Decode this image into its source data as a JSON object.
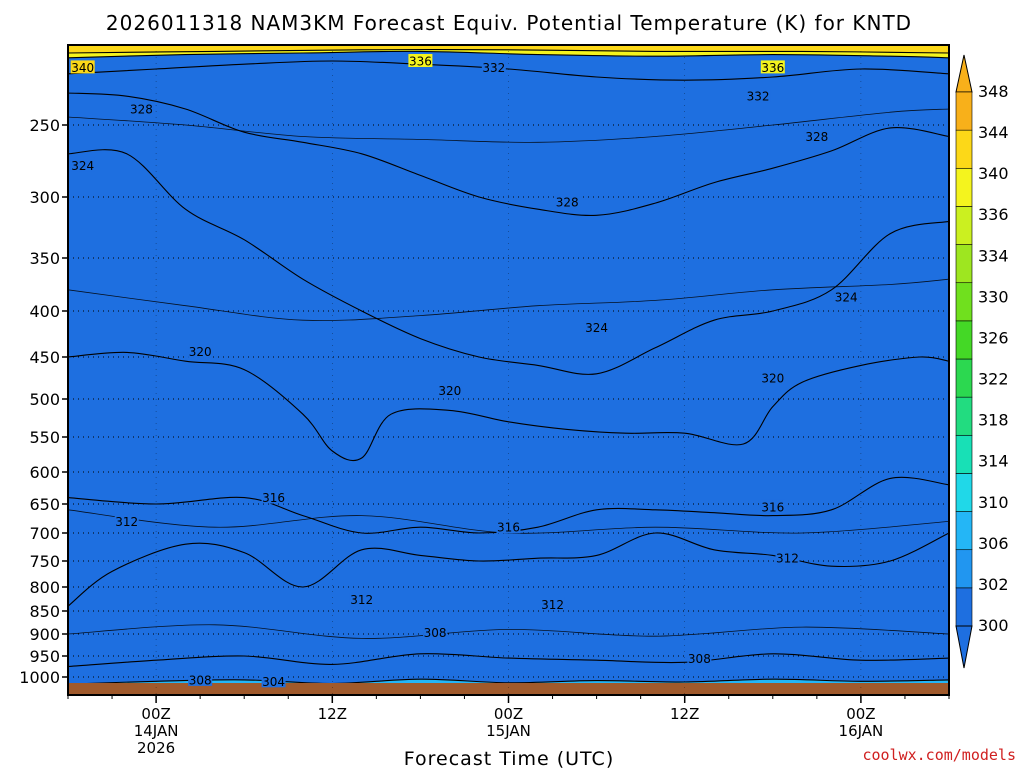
{
  "chart_data": {
    "type": "heatmap",
    "title": "2026011318 NAM3KM Forecast Equiv. Potential Temperature (K) for KNTD",
    "xlabel": "Forecast Time (UTC)",
    "ylabel": "",
    "x_ticks": [
      {
        "hour": 6,
        "lines": [
          "00Z",
          "14JAN",
          "2026"
        ]
      },
      {
        "hour": 18,
        "lines": [
          "12Z"
        ]
      },
      {
        "hour": 30,
        "lines": [
          "00Z",
          "15JAN"
        ]
      },
      {
        "hour": 42,
        "lines": [
          "12Z"
        ]
      },
      {
        "hour": 54,
        "lines": [
          "00Z",
          "16JAN"
        ]
      }
    ],
    "xlim_hours": [
      0,
      60
    ],
    "y_ticks": [
      "250",
      "300",
      "350",
      "400",
      "450",
      "500",
      "550",
      "600",
      "650",
      "700",
      "750",
      "800",
      "850",
      "900",
      "950",
      "1000"
    ],
    "y_tick_values": [
      250,
      300,
      350,
      400,
      450,
      500,
      550,
      600,
      650,
      700,
      750,
      800,
      850,
      900,
      950,
      1000
    ],
    "ylim_hpa": [
      200,
      1025
    ],
    "colorbar_levels": [
      "300",
      "302",
      "306",
      "310",
      "314",
      "318",
      "322",
      "326",
      "330",
      "334",
      "336",
      "340",
      "344",
      "348"
    ],
    "colorbar_values": [
      300,
      302,
      306,
      310,
      314,
      318,
      322,
      326,
      330,
      334,
      336,
      340,
      344,
      348
    ],
    "colors": [
      "#1e6fe0",
      "#2196f0",
      "#24b6f6",
      "#20d8e8",
      "#18e0b6",
      "#22dc80",
      "#2cd850",
      "#44d826",
      "#70e01e",
      "#9ee620",
      "#cbf020",
      "#f4f41e",
      "#fcd818",
      "#f8b01a"
    ],
    "contours": [
      {
        "level": 304,
        "points": [
          [
            0,
            1010
          ],
          [
            6,
            1006
          ],
          [
            12,
            1004
          ],
          [
            18,
            1009
          ],
          [
            24,
            1003
          ],
          [
            30,
            1008
          ],
          [
            36,
            1005
          ],
          [
            42,
            1007
          ],
          [
            48,
            1003
          ],
          [
            54,
            1006
          ],
          [
            60,
            1004
          ]
        ]
      },
      {
        "level": 308,
        "points": [
          [
            0,
            975
          ],
          [
            6,
            960
          ],
          [
            12,
            950
          ],
          [
            18,
            970
          ],
          [
            24,
            945
          ],
          [
            30,
            955
          ],
          [
            36,
            960
          ],
          [
            42,
            965
          ],
          [
            48,
            945
          ],
          [
            54,
            960
          ],
          [
            60,
            955
          ]
        ]
      },
      {
        "level": 312,
        "points": [
          [
            0,
            840
          ],
          [
            3,
            770
          ],
          [
            8,
            720
          ],
          [
            12,
            735
          ],
          [
            16,
            800
          ],
          [
            20,
            730
          ],
          [
            24,
            740
          ],
          [
            28,
            750
          ],
          [
            32,
            745
          ],
          [
            36,
            740
          ],
          [
            40,
            700
          ],
          [
            44,
            730
          ],
          [
            48,
            740
          ],
          [
            52,
            760
          ],
          [
            56,
            750
          ],
          [
            60,
            700
          ]
        ]
      },
      {
        "level": 316,
        "points": [
          [
            0,
            640
          ],
          [
            6,
            650
          ],
          [
            12,
            640
          ],
          [
            16,
            670
          ],
          [
            20,
            700
          ],
          [
            24,
            690
          ],
          [
            28,
            700
          ],
          [
            32,
            690
          ],
          [
            36,
            660
          ],
          [
            40,
            660
          ],
          [
            44,
            665
          ],
          [
            48,
            670
          ],
          [
            52,
            660
          ],
          [
            56,
            610
          ],
          [
            60,
            620
          ]
        ]
      },
      {
        "level": 320,
        "points": [
          [
            0,
            450
          ],
          [
            4,
            445
          ],
          [
            8,
            455
          ],
          [
            12,
            465
          ],
          [
            16,
            520
          ],
          [
            18,
            570
          ],
          [
            20,
            580
          ],
          [
            22,
            520
          ],
          [
            26,
            515
          ],
          [
            30,
            530
          ],
          [
            34,
            540
          ],
          [
            38,
            545
          ],
          [
            42,
            545
          ],
          [
            46,
            560
          ],
          [
            48,
            510
          ],
          [
            50,
            480
          ],
          [
            54,
            460
          ],
          [
            58,
            450
          ],
          [
            60,
            455
          ]
        ]
      },
      {
        "level": 324,
        "points": [
          [
            0,
            270
          ],
          [
            4,
            270
          ],
          [
            8,
            310
          ],
          [
            12,
            335
          ],
          [
            16,
            370
          ],
          [
            20,
            400
          ],
          [
            24,
            430
          ],
          [
            28,
            450
          ],
          [
            32,
            460
          ],
          [
            36,
            470
          ],
          [
            40,
            440
          ],
          [
            44,
            410
          ],
          [
            48,
            400
          ],
          [
            52,
            380
          ],
          [
            56,
            330
          ],
          [
            60,
            320
          ]
        ]
      },
      {
        "level": 328,
        "points": [
          [
            0,
            230
          ],
          [
            4,
            232
          ],
          [
            8,
            240
          ],
          [
            12,
            255
          ],
          [
            16,
            262
          ],
          [
            20,
            270
          ],
          [
            24,
            285
          ],
          [
            28,
            300
          ],
          [
            32,
            310
          ],
          [
            36,
            315
          ],
          [
            40,
            305
          ],
          [
            44,
            290
          ],
          [
            48,
            280
          ],
          [
            52,
            268
          ],
          [
            56,
            252
          ],
          [
            60,
            258
          ]
        ]
      },
      {
        "level": 332,
        "points": [
          [
            0,
            218
          ],
          [
            6,
            215
          ],
          [
            12,
            212
          ],
          [
            18,
            210
          ],
          [
            24,
            212
          ],
          [
            30,
            215
          ],
          [
            36,
            220
          ],
          [
            42,
            222
          ],
          [
            48,
            220
          ],
          [
            54,
            215
          ],
          [
            60,
            218
          ]
        ]
      },
      {
        "level": 336,
        "points": [
          [
            0,
            208
          ],
          [
            8,
            206
          ],
          [
            16,
            205
          ],
          [
            24,
            204
          ],
          [
            32,
            206
          ],
          [
            40,
            207
          ],
          [
            48,
            206
          ],
          [
            56,
            207
          ],
          [
            60,
            208
          ]
        ]
      },
      {
        "level": 340,
        "points": [
          [
            0,
            205
          ],
          [
            10,
            204
          ],
          [
            20,
            203
          ],
          [
            30,
            203
          ],
          [
            40,
            204
          ],
          [
            50,
            204
          ],
          [
            60,
            205
          ]
        ]
      }
    ],
    "contour_labels": [
      {
        "text": "340",
        "hour": 1,
        "hpa": 214
      },
      {
        "text": "336",
        "hour": 24,
        "hpa": 210
      },
      {
        "text": "332",
        "hour": 29,
        "hpa": 214
      },
      {
        "text": "336",
        "hour": 48,
        "hpa": 214
      },
      {
        "text": "332",
        "hour": 47,
        "hpa": 232
      },
      {
        "text": "328",
        "hour": 5,
        "hpa": 240
      },
      {
        "text": "328",
        "hour": 51,
        "hpa": 258
      },
      {
        "text": "324",
        "hour": 1,
        "hpa": 278
      },
      {
        "text": "328",
        "hour": 34,
        "hpa": 304
      },
      {
        "text": "324",
        "hour": 53,
        "hpa": 387
      },
      {
        "text": "324",
        "hour": 36,
        "hpa": 418
      },
      {
        "text": "320",
        "hour": 9,
        "hpa": 444
      },
      {
        "text": "320",
        "hour": 48,
        "hpa": 475
      },
      {
        "text": "320",
        "hour": 26,
        "hpa": 490
      },
      {
        "text": "316",
        "hour": 14,
        "hpa": 640
      },
      {
        "text": "316",
        "hour": 48,
        "hpa": 655
      },
      {
        "text": "316",
        "hour": 30,
        "hpa": 690
      },
      {
        "text": "312",
        "hour": 4,
        "hpa": 680
      },
      {
        "text": "312",
        "hour": 49,
        "hpa": 745
      },
      {
        "text": "312",
        "hour": 20,
        "hpa": 826
      },
      {
        "text": "312",
        "hour": 33,
        "hpa": 836
      },
      {
        "text": "308",
        "hour": 25,
        "hpa": 897
      },
      {
        "text": "308",
        "hour": 43,
        "hpa": 956
      },
      {
        "text": "308",
        "hour": 9,
        "hpa": 1004
      },
      {
        "text": "304",
        "hour": 14,
        "hpa": 1006
      }
    ]
  },
  "credit": "coolwx.com/models"
}
